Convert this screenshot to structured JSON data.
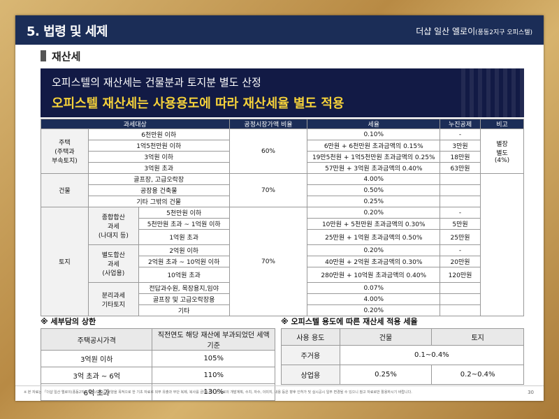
{
  "header": {
    "title": "5. 법령 및 세제",
    "brand_main": "더샵 일산 엘로이",
    "brand_sub": "(풍동2지구 오피스텔)"
  },
  "section": {
    "title": "재산세"
  },
  "banner": {
    "line1": "오피스텔의 재산세는 건물분과 토지분 별도 산정",
    "line2": "오피스텔 재산세는 사용용도에 따라 재산세율 별도 적용"
  },
  "main_table": {
    "headers": [
      "과세대상",
      "공정시장가액 비율",
      "세율",
      "누진공제",
      "비고"
    ],
    "housing": {
      "label": "주택\n(주택과\n부속토지)",
      "ratio": "60%",
      "note": "별장\n별도\n(4%)",
      "rows": [
        {
          "range": "6천만원 이하",
          "rate": "0.10%",
          "deduct": "-"
        },
        {
          "range": "1억5천만원 이하",
          "rate": "6만원 + 6천만원 초과금액의 0.15%",
          "deduct": "3만원"
        },
        {
          "range": "3억원 이하",
          "rate": "19만5천원 + 1억5천만원 초과금액의 0.25%",
          "deduct": "18만원"
        },
        {
          "range": "3억원 초과",
          "rate": "57만원 + 3억원 초과금액의 0.40%",
          "deduct": "63만원"
        }
      ]
    },
    "building": {
      "label": "건물",
      "ratio": "70%",
      "rows": [
        {
          "range": "골프장, 고급오락장",
          "rate": "4.00%"
        },
        {
          "range": "공장용 건축물",
          "rate": "0.50%"
        },
        {
          "range": "기타 그밖의 건물",
          "rate": "0.25%"
        }
      ]
    },
    "land": {
      "label": "토지",
      "ratio": "70%",
      "groups": [
        {
          "label": "종합합산\n과세\n(나대지 등)",
          "rows": [
            {
              "range": "5천만원 이하",
              "rate": "0.20%",
              "deduct": "-"
            },
            {
              "range": "5천만원 초과 ~ 1억원 이하",
              "rate": "10만원 + 5천만원 초과금액의 0.30%",
              "deduct": "5만원"
            },
            {
              "range": "1억원 초과",
              "rate": "25만원 + 1억원 초과금액의 0.50%",
              "deduct": "25만원"
            }
          ]
        },
        {
          "label": "별도합산\n과세\n(사업용)",
          "rows": [
            {
              "range": "2억원 이하",
              "rate": "0.20%",
              "deduct": "-"
            },
            {
              "range": "2억원 초과 ~ 10억원 이하",
              "rate": "40만원 + 2억원 초과금액의 0.30%",
              "deduct": "20만원"
            },
            {
              "range": "10억원 초과",
              "rate": "280만원 + 10억원 초과금액의 0.40%",
              "deduct": "120만원"
            }
          ]
        },
        {
          "label": "분리과세\n기타토지",
          "rows": [
            {
              "range": "전답과수원, 목장용지,임야",
              "rate": "0.07%",
              "deduct": ""
            },
            {
              "range": "골프장 및 고급오락장용",
              "rate": "4.00%",
              "deduct": ""
            },
            {
              "range": "기타",
              "rate": "0.20%",
              "deduct": ""
            }
          ]
        }
      ]
    }
  },
  "cap": {
    "title": "※ 세부담의 상한",
    "headers": [
      "주택공시가격",
      "직전연도 해당 재산에 부과되었던 세액 기준"
    ],
    "rows": [
      {
        "price": "3억원 이하",
        "limit": "105%"
      },
      {
        "price": "3억 초과 ~ 6억",
        "limit": "110%"
      },
      {
        "price": "6억 초과",
        "limit": "130%"
      }
    ]
  },
  "officetel": {
    "title": "※ 오피스텔 용도에 따른 재산세 적용 세율",
    "headers": [
      "사용 용도",
      "건물",
      "토지"
    ],
    "residential": {
      "label": "주거용",
      "rate": "0.1~0.4%"
    },
    "commercial": {
      "label": "상업용",
      "building": "0.25%",
      "land": "0.2~0.4%"
    }
  },
  "footer": {
    "disclaimer": "※ 본 자료는 「더샵 일산 엘로이(풍동2지구 오피스텔)」 분양을 목적으로 한 기초 자료로 외부 유출과 무단 복제, 복사를 금합니다. 본 자료의 개발계획, 수치, 자수, 이미지, 내용 등은 향후 인허가 및 실시공시 일부 변경될 수 있으니 참고 자료로만 활용하시기 바랍니다.",
    "page": "30"
  }
}
